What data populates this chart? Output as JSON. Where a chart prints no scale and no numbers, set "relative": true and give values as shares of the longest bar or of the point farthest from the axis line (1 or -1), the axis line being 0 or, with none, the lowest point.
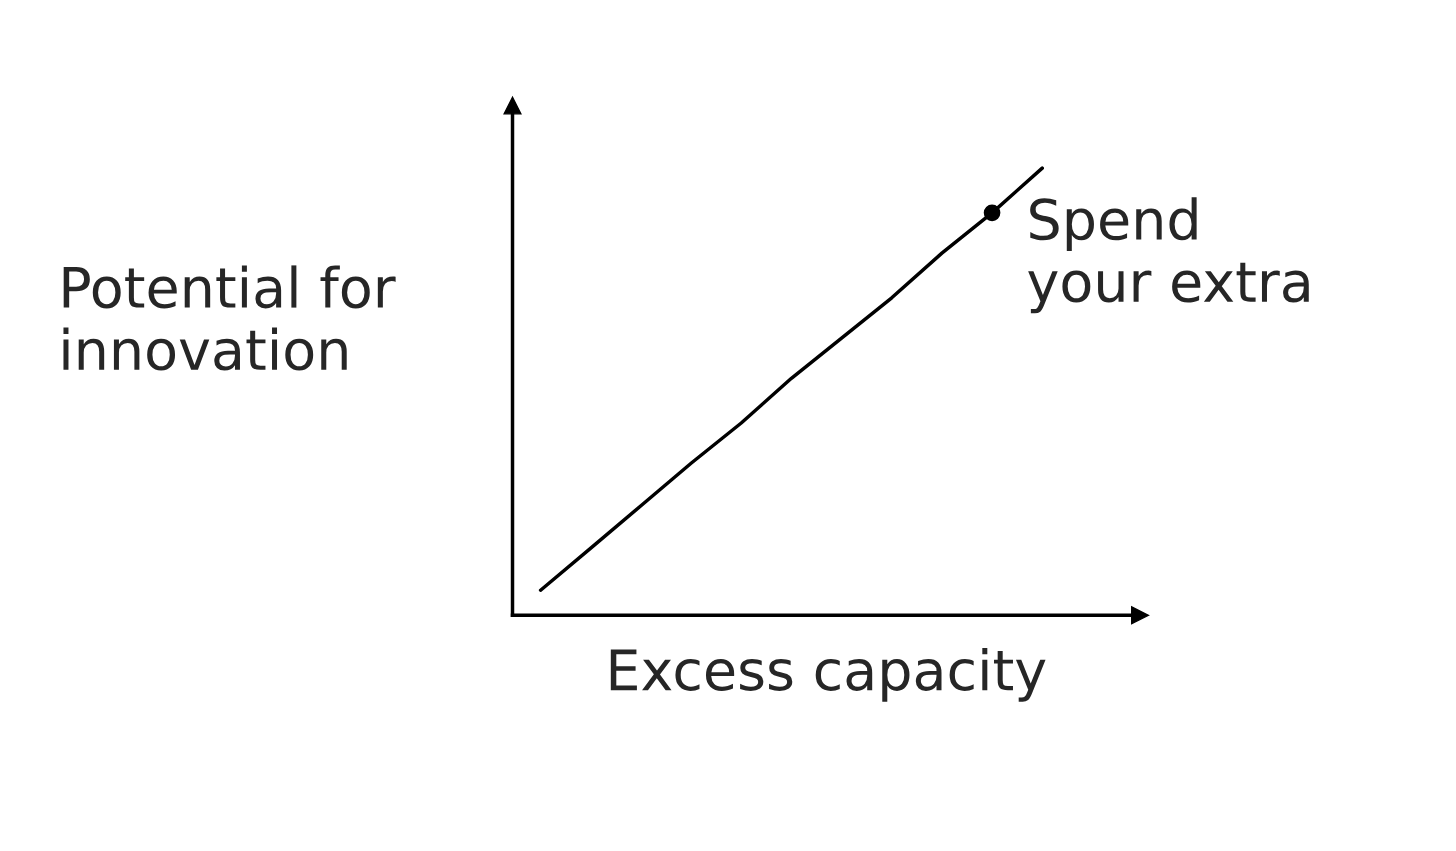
{
  "chart_data": {
    "type": "line",
    "relative": true,
    "xlabel": "Excess capacity",
    "ylabel": "Potential for\ninnovation",
    "categories": [
      null,
      null,
      null,
      null,
      null,
      null,
      null,
      null,
      null,
      null,
      null
    ],
    "series": [
      {
        "color": "#000000",
        "marker": "none",
        "values": [
          0.056,
          0.15,
          0.245,
          0.34,
          0.43,
          0.53,
          0.62,
          0.71,
          0.81,
          0.9,
          1.0
        ]
      },
      {
        "color": "#000000",
        "marker": "circle",
        "values": [
          null,
          null,
          null,
          null,
          null,
          null,
          null,
          null,
          null,
          0.9,
          null
        ]
      }
    ],
    "annotations": [
      "Spend\nyour extra"
    ]
  }
}
